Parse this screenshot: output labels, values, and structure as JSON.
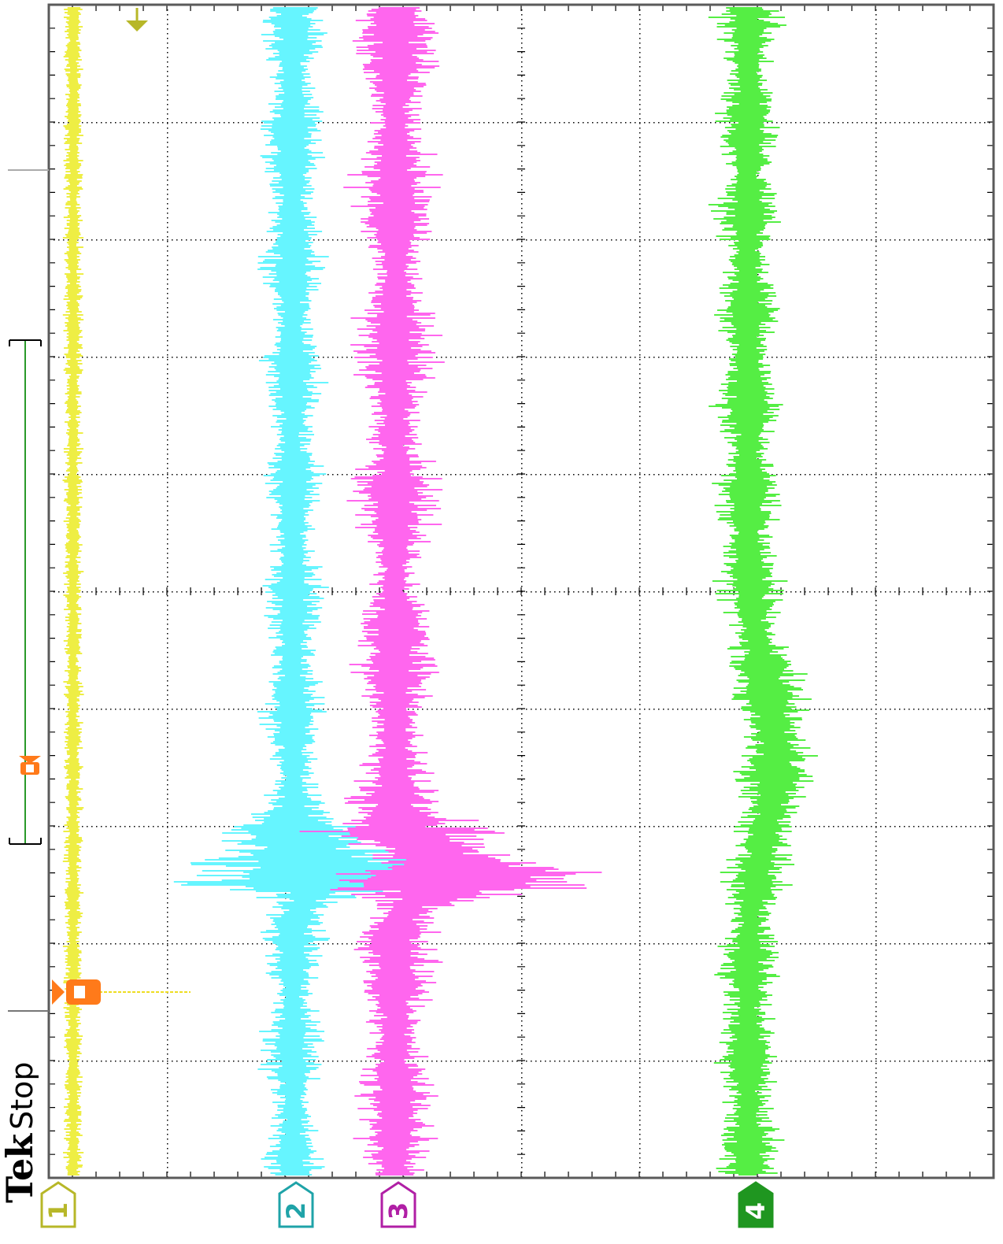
{
  "brand": {
    "name": "Tek",
    "acq_state": "Stop"
  },
  "grid": {
    "vertical_divisions": 8,
    "horizontal_divisions": 10,
    "minor_ticks_per_division": 5
  },
  "channels": [
    {
      "id": "ch1",
      "label": "1",
      "color": "#eeee44",
      "marker_color": "#b7b728",
      "marker_fill": "none"
    },
    {
      "id": "ch2",
      "label": "2",
      "color": "#66f5ff",
      "marker_color": "#1fa3a8",
      "marker_fill": "none"
    },
    {
      "id": "ch3",
      "label": "3",
      "color": "#ff66ee",
      "marker_color": "#b01fa5",
      "marker_fill": "none"
    },
    {
      "id": "ch4",
      "label": "4",
      "color": "#55ee44",
      "marker_color": "#1f9620",
      "marker_fill": "#1f9620"
    }
  ],
  "colors": {
    "grid_dots": "#000000",
    "frame": "#5a5a5a",
    "trigger_marker": "#b7b728",
    "cursor_marker": "#ff7a1a",
    "record_bracket": "#2a9a2a"
  },
  "icons": {
    "trigger_position": "trigger-position-icon",
    "trigger_level": "trigger-level-icon",
    "cursor": "cursor-icon",
    "record_view": "record-view-bracket"
  }
}
